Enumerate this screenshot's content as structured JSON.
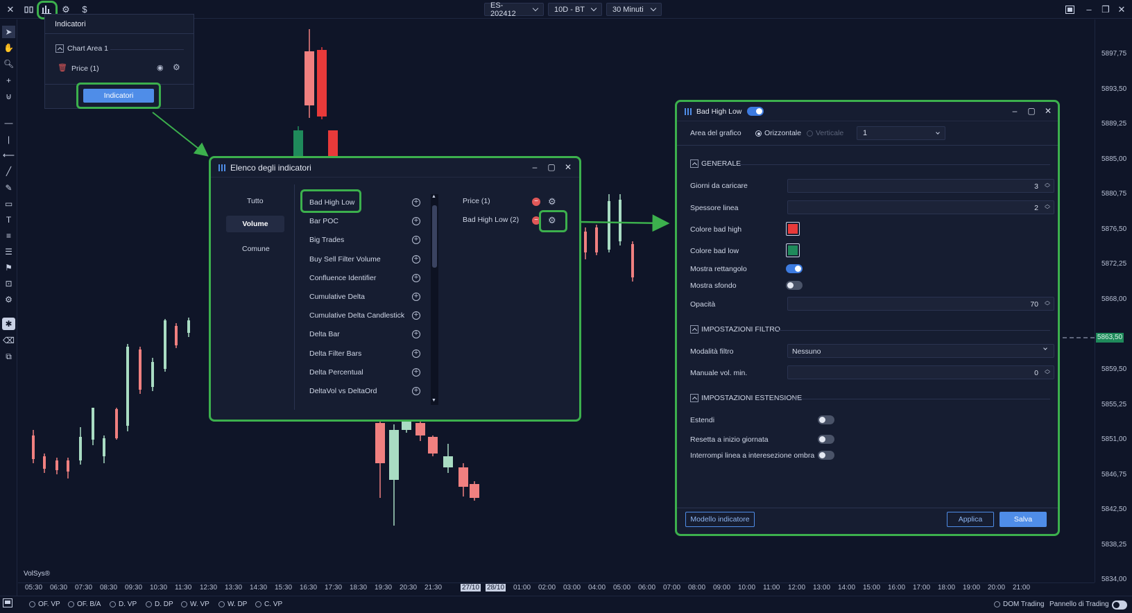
{
  "topbar": {
    "symbol": "ES-202412",
    "template": "10D - BT",
    "timeframe": "30 Minuti"
  },
  "price_axis": {
    "labels": [
      "5897,75",
      "5893,50",
      "5889,25",
      "5885,00",
      "5880,75",
      "5876,50",
      "5872,25",
      "5868,00",
      "5863,50",
      "5859,50",
      "5855,25",
      "5851,00",
      "5846,75",
      "5842,50",
      "5838,25",
      "5834,00"
    ],
    "current": "5863,50"
  },
  "time_axis": {
    "labels": [
      "05:30",
      "06:30",
      "07:30",
      "08:30",
      "09:30",
      "10:30",
      "11:30",
      "12:30",
      "13:30",
      "14:30",
      "15:30",
      "16:30",
      "17:30",
      "18:30",
      "19:30",
      "20:30",
      "21:30",
      "27/10",
      "28/10",
      "01:00",
      "02:00",
      "03:00",
      "04:00",
      "05:00",
      "06:00",
      "07:00",
      "08:00",
      "09:00",
      "10:00",
      "11:00",
      "12:00",
      "13:00",
      "14:00",
      "15:00",
      "16:00",
      "17:00",
      "18:00",
      "19:00",
      "20:00",
      "21:00"
    ]
  },
  "watermark": "VolSys®",
  "bottom_bar": {
    "items": [
      "OF. VP",
      "OF. B/A",
      "D. VP",
      "D. DP",
      "W. VP",
      "W. DP",
      "C. VP"
    ],
    "right": [
      "DOM Trading",
      "Pannello di Trading"
    ]
  },
  "indicators_dropdown": {
    "title": "Indicatori",
    "area": "Chart Area 1",
    "price_item": "Price (1)",
    "button": "Indicatori"
  },
  "indicators_list": {
    "title": "Elenco degli indicatori",
    "categories": [
      "Tutto",
      "Volume",
      "Comune"
    ],
    "selected_category": "Volume",
    "available": [
      "Bad High Low",
      "Bar POC",
      "Big Trades",
      "Buy Sell Filter Volume",
      "Confluence Identifier",
      "Cumulative Delta",
      "Cumulative Delta Candlestick",
      "Delta Bar",
      "Delta Filter Bars",
      "Delta Percentual",
      "DeltaVol vs DeltaOrd"
    ],
    "active": [
      "Price (1)",
      "Bad High Low (2)"
    ]
  },
  "settings": {
    "title": "Bad High Low",
    "area_label": "Area del grafico",
    "orient_h": "Orizzontale",
    "orient_v": "Verticale",
    "area_value": "1",
    "sections": {
      "general": "GENERALE",
      "filter": "IMPOSTAZIONI FILTRO",
      "extension": "IMPOSTAZIONI ESTENSIONE"
    },
    "days_label": "Giorni da caricare",
    "days_value": "3",
    "thickness_label": "Spessore linea",
    "thickness_value": "2",
    "color_high_label": "Colore bad high",
    "color_high": "#e83a3a",
    "color_low_label": "Colore bad low",
    "color_low": "#1f8a5b",
    "show_rect_label": "Mostra rettangolo",
    "show_bg_label": "Mostra sfondo",
    "opacity_label": "Opacità",
    "opacity_value": "70",
    "filter_mode_label": "Modalità filtro",
    "filter_mode_value": "Nessuno",
    "manual_vol_label": "Manuale vol. min.",
    "manual_vol_value": "0",
    "extend_label": "Estendi",
    "reset_label": "Resetta a inizio giornata",
    "break_label": "Interrompi linea a interesezione ombra",
    "template_button": "Modello indicatore",
    "apply_button": "Applica",
    "save_button": "Salva"
  },
  "colors": {
    "bull": "#1f8a5b",
    "bull_light": "#a9dcc3",
    "bear": "#e83a3a",
    "bear_light": "#f08080",
    "highlight": "#3cb04d",
    "accent": "#3d7be0"
  }
}
